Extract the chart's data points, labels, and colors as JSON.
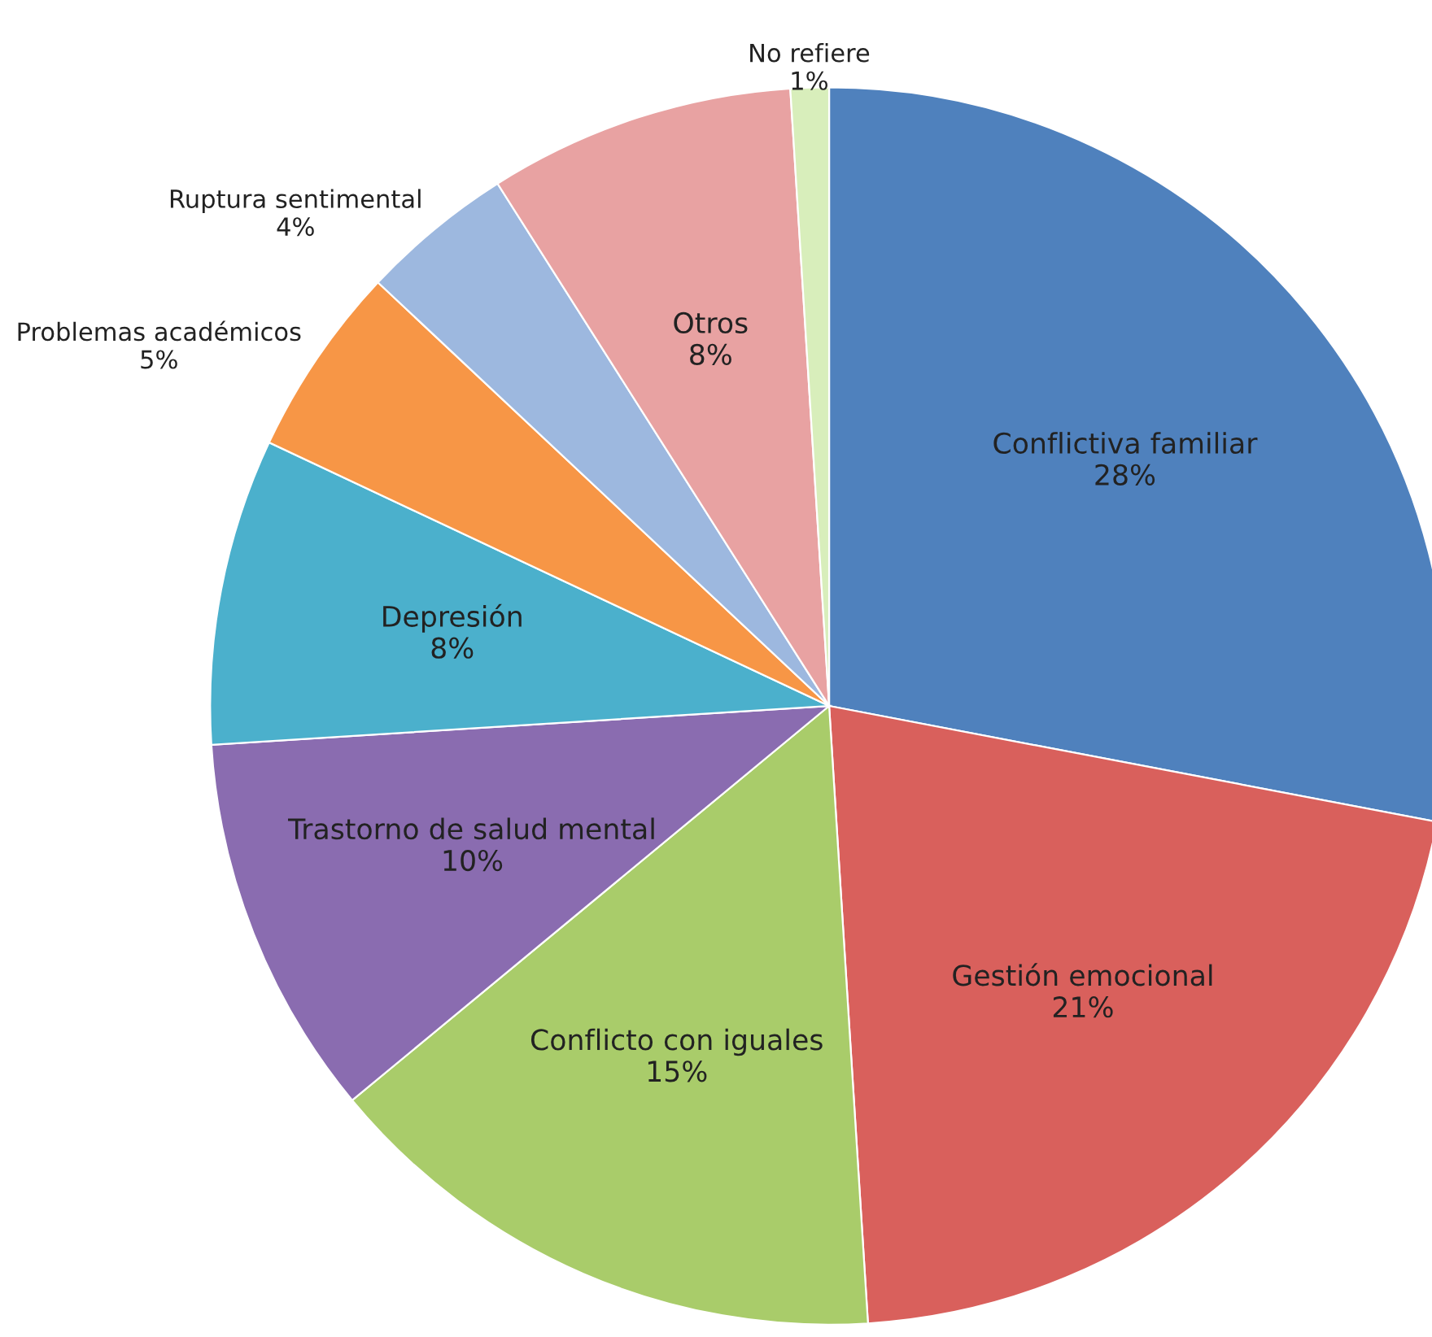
{
  "chart_data": {
    "type": "pie",
    "categories": [
      "Conflictiva familiar",
      "Gestión emocional",
      "Conflicto con iguales",
      "Trastorno de salud mental",
      "Depresión",
      "Problemas académicos",
      "Ruptura sentimental",
      "Otros",
      "No refiere"
    ],
    "values": [
      28,
      21,
      15,
      10,
      8,
      5,
      4,
      8,
      1
    ],
    "value_labels": [
      "28%",
      "21%",
      "15%",
      "10%",
      "8%",
      "5%",
      "4%",
      "8%",
      "1%"
    ],
    "colors": [
      "#4f81bd",
      "#d9605c",
      "#a9cc6a",
      "#8a6cb0",
      "#4bb0cc",
      "#f79646",
      "#9db8df",
      "#e8a2a2",
      "#d8eebb"
    ],
    "legend": false
  }
}
